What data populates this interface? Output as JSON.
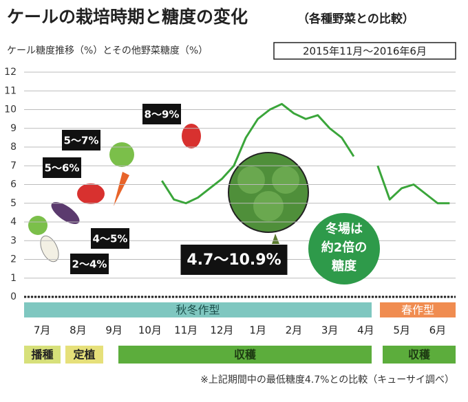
{
  "chart_data": {
    "type": "line",
    "title": "ケールの栽培時期と糖度の変化",
    "title_note": "（各種野菜との比較）",
    "subtitle": "ケール糖度推移（%）とその他野菜糖度（%）",
    "period": "2015年11月～2016年6月",
    "categories": [
      null,
      "7月",
      null,
      null,
      "8月",
      null,
      null,
      "9月",
      null,
      null,
      "10月",
      null,
      null,
      "11月",
      null,
      null,
      "12月",
      null,
      null,
      "1月",
      null,
      null,
      "2月",
      null,
      null,
      "3月",
      null,
      null,
      "4月",
      null,
      null,
      "5月",
      null,
      null,
      "6月",
      null
    ],
    "series": [
      {
        "color": "#3aa53a",
        "values": [
          null,
          null,
          null,
          null,
          null,
          null,
          null,
          null,
          null,
          null,
          null,
          6.2,
          5.2,
          5.0,
          5.3,
          5.8,
          6.3,
          7.0,
          8.5,
          9.5,
          10.0,
          10.3,
          9.8,
          9.5,
          9.7,
          9.0,
          8.5,
          7.5,
          null,
          7.0,
          5.2,
          5.8,
          6.0,
          5.5,
          5.0,
          5.0
        ]
      }
    ],
    "ylim": [
      0,
      12
    ],
    "yticks": [
      0,
      1,
      2,
      3,
      4,
      5,
      6,
      7,
      8,
      9,
      10,
      11,
      12
    ],
    "grid": true,
    "annotations": [
      "8～9%",
      "5～7%",
      "5～6%",
      "4～5%",
      "2～4%",
      "4.7～10.9%"
    ],
    "callout": [
      "冬場は",
      "約2倍の",
      "糖度"
    ],
    "bands": [
      "秋冬作型",
      "春作型"
    ],
    "stages": [
      "播種",
      "定植",
      "収穫",
      "収穫"
    ],
    "note": "※上記期間中の最低糖度4.7%との比較（キューサイ調べ）"
  }
}
